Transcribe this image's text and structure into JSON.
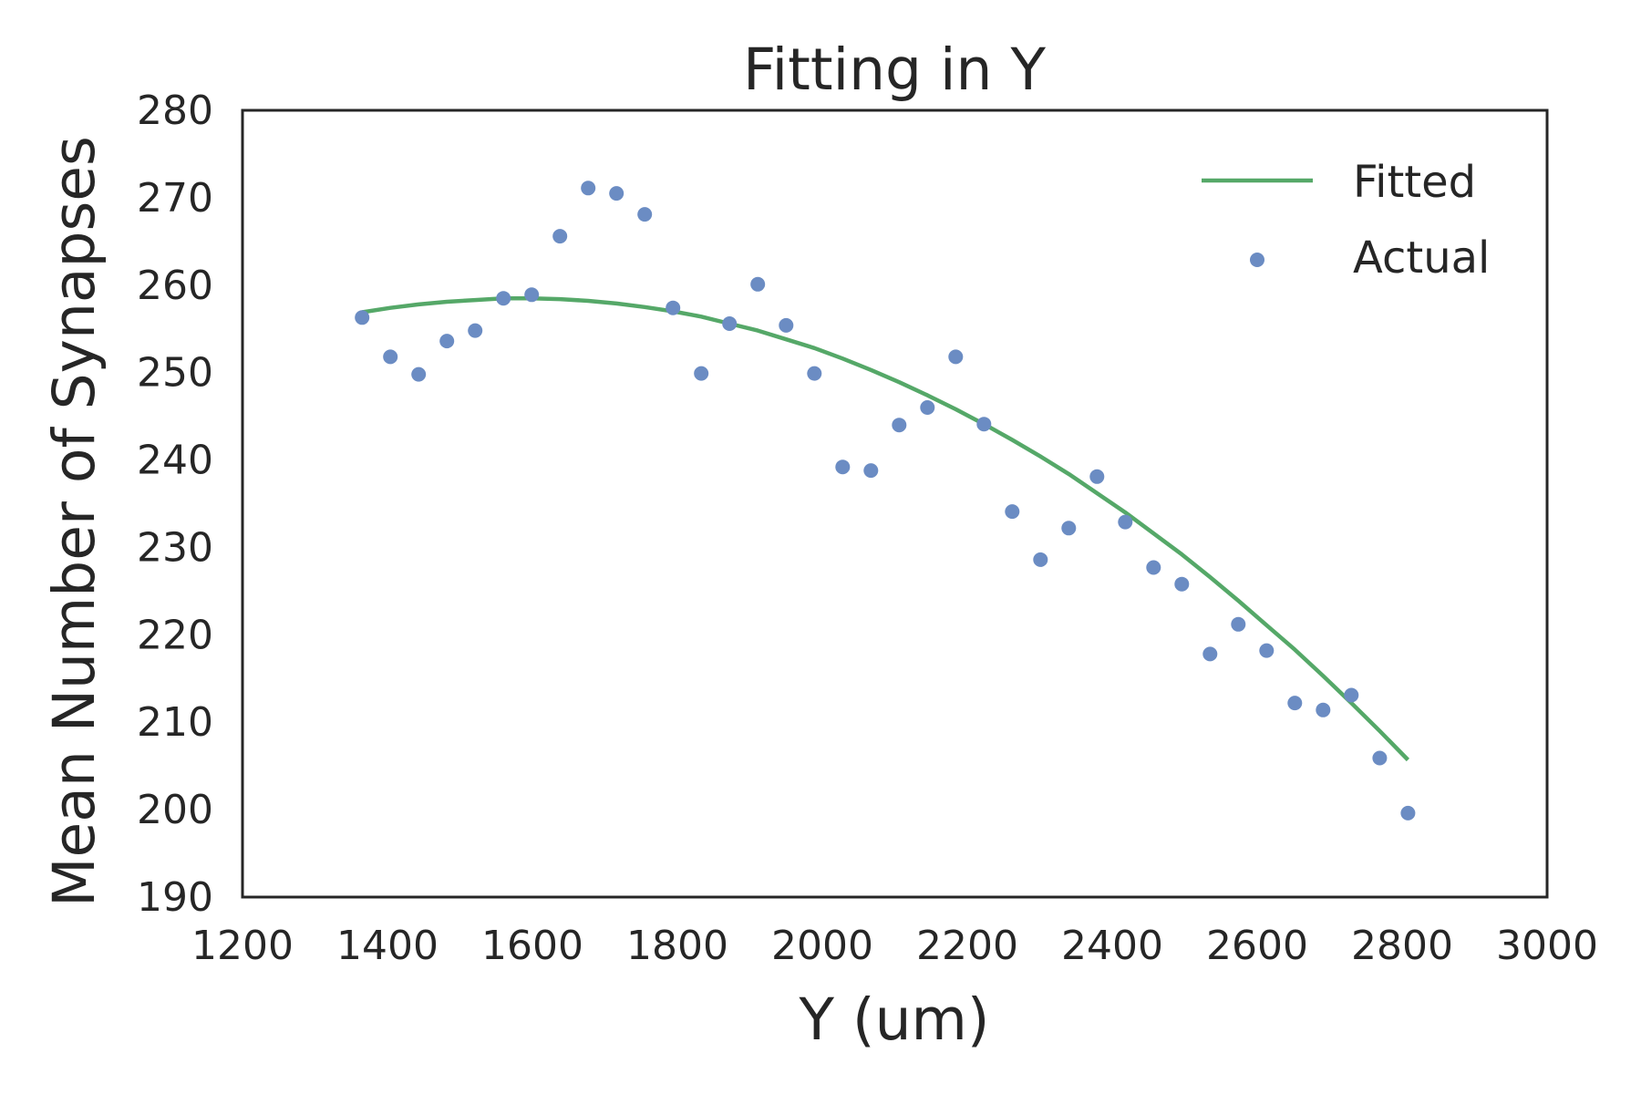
{
  "chart_data": {
    "type": "scatter",
    "title": "Fitting in Y",
    "xlabel": "Y (um)",
    "ylabel": "Mean Number of Synapses",
    "xlim": [
      1200,
      3000
    ],
    "ylim": [
      190,
      280
    ],
    "x_ticks": [
      "1200",
      "1400",
      "1600",
      "1800",
      "2000",
      "2200",
      "2400",
      "2600",
      "2800",
      "3000"
    ],
    "y_ticks": [
      "190",
      "200",
      "210",
      "220",
      "230",
      "240",
      "250",
      "260",
      "270",
      "280"
    ],
    "grid": false,
    "legend_position": "top-right",
    "series": [
      {
        "name": "Fitted",
        "kind": "line",
        "color": "#55a868",
        "x": [
          1365,
          1404,
          1443,
          1482,
          1521,
          1560,
          1599,
          1638,
          1677,
          1716,
          1755,
          1794,
          1833,
          1872,
          1911,
          1950,
          1989,
          2028,
          2067,
          2106,
          2145,
          2184,
          2223,
          2262,
          2301,
          2340,
          2379,
          2418,
          2457,
          2496,
          2535,
          2574,
          2613,
          2652,
          2691,
          2730,
          2769,
          2808
        ],
        "y": [
          256.9,
          257.4,
          257.8,
          258.1,
          258.3,
          258.5,
          258.5,
          258.4,
          258.2,
          257.9,
          257.5,
          257.0,
          256.4,
          255.6,
          254.8,
          253.8,
          252.8,
          251.6,
          250.3,
          248.9,
          247.4,
          245.8,
          244.1,
          242.3,
          240.4,
          238.4,
          236.2,
          234.0,
          231.6,
          229.2,
          226.6,
          223.9,
          221.1,
          218.3,
          215.3,
          212.2,
          209.0,
          205.7
        ]
      },
      {
        "name": "Actual",
        "kind": "scatter",
        "color": "#6b8cc3",
        "x": [
          1365,
          1404,
          1443,
          1482,
          1521,
          1560,
          1599,
          1638,
          1677,
          1716,
          1755,
          1794,
          1833,
          1872,
          1911,
          1950,
          1989,
          2028,
          2067,
          2106,
          2145,
          2184,
          2223,
          2262,
          2301,
          2340,
          2379,
          2418,
          2457,
          2496,
          2535,
          2574,
          2613,
          2652,
          2691,
          2730,
          2769,
          2808
        ],
        "y": [
          256.3,
          251.8,
          249.8,
          253.6,
          254.8,
          258.5,
          258.9,
          265.6,
          271.1,
          270.5,
          268.1,
          257.4,
          249.9,
          255.6,
          260.1,
          255.4,
          249.9,
          239.2,
          238.8,
          244.0,
          246.0,
          251.8,
          244.1,
          234.1,
          228.6,
          232.2,
          238.1,
          232.9,
          227.7,
          225.8,
          217.8,
          221.2,
          218.2,
          212.2,
          211.4,
          213.1,
          205.9,
          199.6
        ]
      }
    ]
  }
}
